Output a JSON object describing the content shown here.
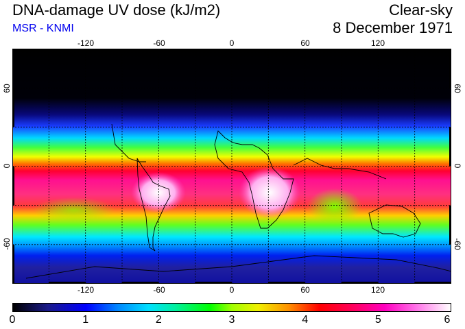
{
  "header": {
    "title": "DNA-damage UV dose (kJ/m2)",
    "subtitle": "MSR - KNMI",
    "sky_condition": "Clear-sky",
    "date": "8 December 1971"
  },
  "map": {
    "projection": "equirectangular",
    "lon_range": [
      -180,
      180
    ],
    "lat_range": [
      -90,
      90
    ],
    "longitude_labels": [
      "-120",
      "-60",
      "0",
      "60",
      "120"
    ],
    "latitude_labels_left": [
      "60",
      "0",
      "-60"
    ],
    "latitude_labels_right": [
      "60",
      "0",
      "-60"
    ],
    "gridlines": "dotted every 30 degrees"
  },
  "colorbar": {
    "labels": [
      "0",
      "1",
      "2",
      "3",
      "4",
      "5",
      "6"
    ],
    "min": 0,
    "max": 6,
    "colors": [
      "#000000",
      "#0000ff",
      "#00e0ff",
      "#00ff00",
      "#f0f000",
      "#ff0000",
      "#ff00c0",
      "#ffffff"
    ]
  }
}
